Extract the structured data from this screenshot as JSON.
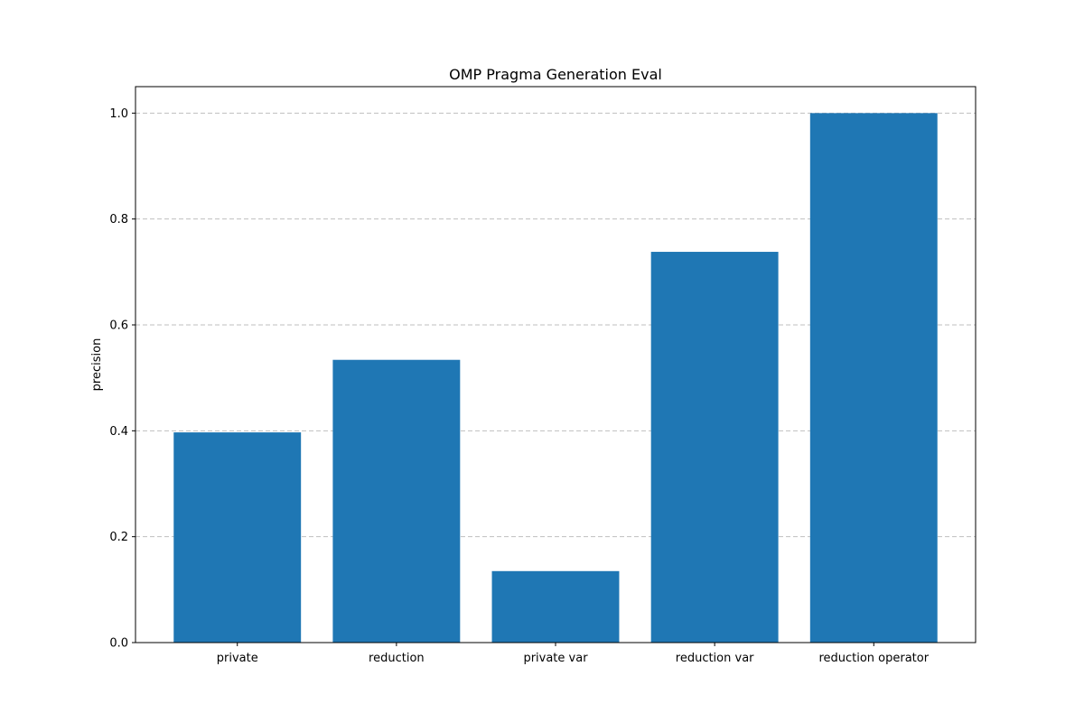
{
  "chart_data": {
    "type": "bar",
    "title": "OMP Pragma Generation Eval",
    "xlabel": "",
    "ylabel": "precision",
    "categories": [
      "private",
      "reduction",
      "private var",
      "reduction var",
      "reduction operator"
    ],
    "values": [
      0.397,
      0.534,
      0.135,
      0.738,
      1.0
    ],
    "ylim": [
      0.0,
      1.05
    ],
    "yticks": [
      0.0,
      0.2,
      0.4,
      0.6,
      0.8,
      1.0
    ],
    "ytick_labels": [
      "0.0",
      "0.2",
      "0.4",
      "0.6",
      "0.8",
      "1.0"
    ],
    "grid": {
      "y": true,
      "x": false,
      "style": "dashed"
    },
    "bar_color": "#1f77b4",
    "legend": null
  }
}
